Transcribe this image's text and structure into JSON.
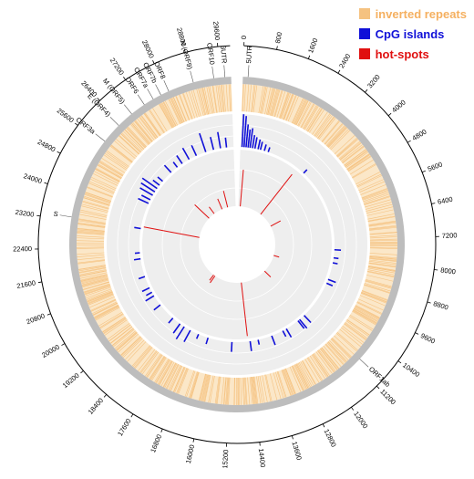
{
  "legend": [
    {
      "label": "inverted repeats",
      "color": "#f5c280"
    },
    {
      "label": "CpG islands",
      "color": "#1010d8"
    },
    {
      "label": "hot-spots",
      "color": "#e01010"
    }
  ],
  "colors": {
    "ring_gray": "#bdbdbd",
    "track_bg": "#eeeeee",
    "inverted_repeats": "#f5c280",
    "cpg": "#1010d8",
    "hotspot": "#e01010",
    "axis": "#000000"
  },
  "genome": {
    "length": 29900
  },
  "axis_ticks": [
    "0",
    "800",
    "1600",
    "2400",
    "3200",
    "4000",
    "4800",
    "5600",
    "6400",
    "7200",
    "8000",
    "8800",
    "9600",
    "10400",
    "11200",
    "12000",
    "12800",
    "13600",
    "14400",
    "15200",
    "16000",
    "16800",
    "17600",
    "18400",
    "19200",
    "20000",
    "20800",
    "21600",
    "22400",
    "23200",
    "24000",
    "24800",
    "25600",
    "26400",
    "27200",
    "28000",
    "28800",
    "29600"
  ],
  "genes": [
    {
      "label": "5UTR",
      "pos": 150
    },
    {
      "label": "ORF1ab",
      "pos": 11000
    },
    {
      "label": "S",
      "pos": 23300
    },
    {
      "label": "ORF3a",
      "pos": 25700
    },
    {
      "label": "E (ORF4)",
      "pos": 26300
    },
    {
      "label": "M (ORF5)",
      "pos": 26800
    },
    {
      "label": "ORF6",
      "pos": 27250
    },
    {
      "label": "ORF7a",
      "pos": 27550
    },
    {
      "label": "ORF7b",
      "pos": 27800
    },
    {
      "label": "ORF8",
      "pos": 28050
    },
    {
      "label": "N (ORF9)",
      "pos": 28800
    },
    {
      "label": "ORF10",
      "pos": 29400
    },
    {
      "label": "3UTR",
      "pos": 29720
    }
  ],
  "chart_data": {
    "type": "circular genome plot",
    "tracks": {
      "cpg_islands": [
        {
          "pos": 80,
          "h": 1.0
        },
        {
          "pos": 180,
          "h": 0.95
        },
        {
          "pos": 280,
          "h": 0.7
        },
        {
          "pos": 380,
          "h": 0.55
        },
        {
          "pos": 480,
          "h": 0.6
        },
        {
          "pos": 600,
          "h": 0.4
        },
        {
          "pos": 720,
          "h": 0.35
        },
        {
          "pos": 880,
          "h": 0.3
        },
        {
          "pos": 1000,
          "h": 0.25
        },
        {
          "pos": 1200,
          "h": 0.2
        },
        {
          "pos": 1400,
          "h": 0.15
        },
        {
          "pos": 3450,
          "h": 0.15
        },
        {
          "pos": 7650,
          "h": 0.2
        },
        {
          "pos": 8050,
          "h": 0.15
        },
        {
          "pos": 8300,
          "h": 0.15
        },
        {
          "pos": 9150,
          "h": 0.25
        },
        {
          "pos": 9350,
          "h": 0.2
        },
        {
          "pos": 11300,
          "h": 0.3
        },
        {
          "pos": 11600,
          "h": 0.35
        },
        {
          "pos": 11700,
          "h": 0.3
        },
        {
          "pos": 12400,
          "h": 0.3
        },
        {
          "pos": 12600,
          "h": 0.2
        },
        {
          "pos": 13200,
          "h": 0.3
        },
        {
          "pos": 13900,
          "h": 0.15
        },
        {
          "pos": 14300,
          "h": 0.3
        },
        {
          "pos": 15200,
          "h": 0.3
        },
        {
          "pos": 16400,
          "h": 0.2
        },
        {
          "pos": 16900,
          "h": 0.15
        },
        {
          "pos": 17350,
          "h": 0.4
        },
        {
          "pos": 17700,
          "h": 0.45
        },
        {
          "pos": 17950,
          "h": 0.35
        },
        {
          "pos": 18400,
          "h": 0.2
        },
        {
          "pos": 19300,
          "h": 0.25
        },
        {
          "pos": 19850,
          "h": 0.3
        },
        {
          "pos": 20050,
          "h": 0.2
        },
        {
          "pos": 20300,
          "h": 0.25
        },
        {
          "pos": 20900,
          "h": 0.2
        },
        {
          "pos": 21800,
          "h": 0.2
        },
        {
          "pos": 22100,
          "h": 0.15
        },
        {
          "pos": 23300,
          "h": 0.2
        },
        {
          "pos": 24600,
          "h": 0.35
        },
        {
          "pos": 24800,
          "h": 0.3
        },
        {
          "pos": 25050,
          "h": 0.45
        },
        {
          "pos": 25250,
          "h": 0.5
        },
        {
          "pos": 25450,
          "h": 0.55
        },
        {
          "pos": 25650,
          "h": 0.25
        },
        {
          "pos": 25900,
          "h": 0.2
        },
        {
          "pos": 26500,
          "h": 0.3
        },
        {
          "pos": 26900,
          "h": 0.2
        },
        {
          "pos": 27200,
          "h": 0.3
        },
        {
          "pos": 27600,
          "h": 0.4
        },
        {
          "pos": 28000,
          "h": 0.35
        },
        {
          "pos": 28500,
          "h": 0.6
        },
        {
          "pos": 28900,
          "h": 0.4
        },
        {
          "pos": 29250,
          "h": 0.5
        },
        {
          "pos": 29550,
          "h": 0.3
        }
      ],
      "hot_spots": [
        {
          "pos": 241,
          "h": 0.65
        },
        {
          "pos": 3037,
          "h": 0.9
        },
        {
          "pos": 5000,
          "h": 0.2
        },
        {
          "pos": 8782,
          "h": 0.1
        },
        {
          "pos": 11083,
          "h": 0.15
        },
        {
          "pos": 14408,
          "h": 0.95
        },
        {
          "pos": 17900,
          "h": 0.15
        },
        {
          "pos": 18100,
          "h": 0.12
        },
        {
          "pos": 23403,
          "h": 1.0
        },
        {
          "pos": 26144,
          "h": 0.35
        },
        {
          "pos": 27000,
          "h": 0.15
        },
        {
          "pos": 28144,
          "h": 0.2
        },
        {
          "pos": 28881,
          "h": 0.3
        }
      ]
    }
  }
}
